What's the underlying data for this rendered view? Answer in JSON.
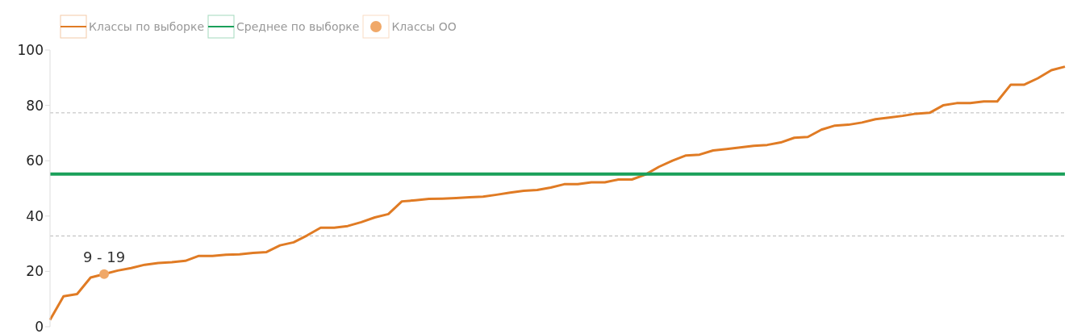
{
  "chart_data": {
    "type": "line",
    "categories": [
      null,
      null,
      null,
      null,
      null,
      null,
      null,
      null,
      null,
      null,
      null,
      null,
      null,
      null,
      null,
      null,
      null,
      null,
      null,
      null,
      null,
      null,
      null,
      null,
      null,
      null,
      null,
      null,
      null,
      null,
      null,
      null,
      null,
      null,
      null,
      null,
      null,
      null,
      null,
      null,
      null,
      null,
      null,
      null,
      null,
      null,
      null,
      null,
      null,
      null,
      null,
      null,
      null,
      null,
      null,
      null,
      null,
      null,
      null,
      null,
      null,
      null,
      null,
      null,
      null,
      null,
      null,
      null,
      null,
      null,
      null,
      null,
      null,
      null,
      null,
      null
    ],
    "series": [
      {
        "name": "Классы по выборке",
        "color": "#e07b24",
        "values": [
          2.5,
          11,
          11.8,
          17.8,
          19,
          20.3,
          21.2,
          22.4,
          23,
          23.3,
          23.8,
          25.6,
          25.6,
          26,
          26.2,
          26.7,
          27,
          29.4,
          30.5,
          33,
          35.8,
          35.8,
          36.4,
          37.8,
          39.5,
          40.7,
          45.3,
          45.7,
          46.2,
          46.3,
          46.5,
          46.8,
          47,
          47.7,
          48.5,
          49.1,
          49.4,
          50.3,
          51.5,
          51.5,
          52.2,
          52.2,
          53.2,
          53.2,
          55,
          57.8,
          60,
          61.9,
          62.2,
          63.7,
          64.2,
          64.8,
          65.4,
          65.7,
          66.6,
          68.3,
          68.6,
          71.2,
          72.7,
          73,
          73.8,
          75,
          75.6,
          76.2,
          77,
          77.3,
          80,
          80.8,
          80.8,
          81.4,
          81.4,
          87.5,
          87.5,
          89.8,
          92.7,
          94
        ]
      },
      {
        "name": "Среднее по выборке",
        "color": "#1aa05a",
        "values": [
          55.2,
          55.2,
          55.2,
          55.2,
          55.2,
          55.2,
          55.2,
          55.2,
          55.2,
          55.2,
          55.2,
          55.2,
          55.2,
          55.2,
          55.2,
          55.2,
          55.2,
          55.2,
          55.2,
          55.2,
          55.2,
          55.2,
          55.2,
          55.2,
          55.2,
          55.2,
          55.2,
          55.2,
          55.2,
          55.2,
          55.2,
          55.2,
          55.2,
          55.2,
          55.2,
          55.2,
          55.2,
          55.2,
          55.2,
          55.2,
          55.2,
          55.2,
          55.2,
          55.2,
          55.2,
          55.2,
          55.2,
          55.2,
          55.2,
          55.2,
          55.2,
          55.2,
          55.2,
          55.2,
          55.2,
          55.2,
          55.2,
          55.2,
          55.2,
          55.2,
          55.2,
          55.2,
          55.2,
          55.2,
          55.2,
          55.2,
          55.2,
          55.2,
          55.2,
          55.2,
          55.2,
          55.2,
          55.2,
          55.2,
          55.2,
          55.2
        ]
      },
      {
        "name": "Классы ОО",
        "type": "scatter",
        "marker": "circle",
        "color": "#f0a868",
        "values": [
          null,
          null,
          null,
          null,
          19,
          null,
          null,
          null,
          null,
          null,
          null,
          null,
          null,
          null,
          null,
          null,
          null,
          null,
          null,
          null,
          null,
          null,
          null,
          null,
          null,
          null,
          null,
          null,
          null,
          null,
          null,
          null,
          null,
          null,
          null,
          null,
          null,
          null,
          null,
          null,
          null,
          null,
          null,
          null,
          null,
          null,
          null,
          null,
          null,
          null,
          null,
          null,
          null,
          null,
          null,
          null,
          null,
          null,
          null,
          null,
          null,
          null,
          null,
          null,
          null,
          null,
          null,
          null,
          null,
          null,
          null,
          null,
          null,
          null,
          null,
          null
        ],
        "value_labels": [
          null,
          null,
          null,
          null,
          "9 - 19",
          null,
          null,
          null,
          null,
          null,
          null,
          null,
          null,
          null,
          null,
          null,
          null,
          null,
          null,
          null,
          null,
          null,
          null,
          null,
          null,
          null,
          null,
          null,
          null,
          null,
          null,
          null,
          null,
          null,
          null,
          null,
          null,
          null,
          null,
          null,
          null,
          null,
          null,
          null,
          null,
          null,
          null,
          null,
          null,
          null,
          null,
          null,
          null,
          null,
          null,
          null,
          null,
          null,
          null,
          null,
          null,
          null,
          null,
          null,
          null,
          null,
          null,
          null,
          null,
          null,
          null,
          null,
          null,
          null,
          null,
          null
        ]
      }
    ],
    "ylim": [
      0,
      100
    ],
    "yticks": [
      0,
      20,
      40,
      60,
      80,
      100
    ],
    "ref_lines": [
      {
        "axis": "y",
        "value": 77.3,
        "color": "#bbbbbb",
        "line_style": "dashed"
      },
      {
        "axis": "y",
        "value": 32.8,
        "color": "#bbbbbb",
        "line_style": "dashed"
      }
    ],
    "grid": false,
    "legend": "top left",
    "tick_labels": "y",
    "marker": "none",
    "line_style": "solid"
  }
}
